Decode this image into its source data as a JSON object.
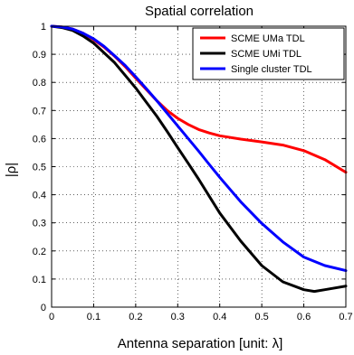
{
  "chart_data": {
    "type": "line",
    "title": "Spatial correlation",
    "xlabel": "Antenna separation [unit: λ]",
    "ylabel": "|ρ|",
    "xlim": [
      0,
      0.7
    ],
    "ylim": [
      0,
      1
    ],
    "xticks": [
      0,
      0.1,
      0.2,
      0.3,
      0.4,
      0.5,
      0.6,
      0.7
    ],
    "xtick_labels": [
      "0",
      "0.1",
      "0.2",
      "0.3",
      "0.4",
      "0.5",
      "0.6",
      "0.7"
    ],
    "yticks": [
      0,
      0.1,
      0.2,
      0.3,
      0.4,
      0.5,
      0.6,
      0.7,
      0.8,
      0.9,
      1
    ],
    "ytick_labels": [
      "0",
      "0.1",
      "0.2",
      "0.3",
      "0.4",
      "0.5",
      "0.6",
      "0.7",
      "0.8",
      "0.9",
      "1"
    ],
    "grid": true,
    "legend_position": "top-right",
    "series": [
      {
        "name": "SCME UMa TDL",
        "color": "#ff0000",
        "x": [
          0,
          0.025,
          0.05,
          0.075,
          0.1,
          0.125,
          0.15,
          0.175,
          0.2,
          0.225,
          0.25,
          0.275,
          0.3,
          0.325,
          0.35,
          0.375,
          0.4,
          0.45,
          0.5,
          0.55,
          0.6,
          0.65,
          0.7
        ],
        "y": [
          1.0,
          0.997,
          0.99,
          0.975,
          0.952,
          0.925,
          0.893,
          0.856,
          0.815,
          0.775,
          0.735,
          0.7,
          0.672,
          0.65,
          0.632,
          0.62,
          0.61,
          0.598,
          0.588,
          0.577,
          0.557,
          0.525,
          0.48
        ]
      },
      {
        "name": "SCME UMi TDL",
        "color": "#000000",
        "x": [
          0,
          0.025,
          0.05,
          0.075,
          0.1,
          0.125,
          0.15,
          0.175,
          0.2,
          0.225,
          0.25,
          0.275,
          0.3,
          0.325,
          0.35,
          0.375,
          0.4,
          0.45,
          0.5,
          0.55,
          0.6,
          0.625,
          0.65,
          0.7
        ],
        "y": [
          1.0,
          0.995,
          0.985,
          0.965,
          0.94,
          0.905,
          0.87,
          0.825,
          0.78,
          0.73,
          0.68,
          0.625,
          0.568,
          0.512,
          0.455,
          0.395,
          0.335,
          0.235,
          0.148,
          0.09,
          0.062,
          0.056,
          0.062,
          0.075
        ]
      },
      {
        "name": "Single cluster TDL",
        "color": "#0000ff",
        "x": [
          0,
          0.025,
          0.05,
          0.075,
          0.1,
          0.125,
          0.15,
          0.175,
          0.2,
          0.225,
          0.25,
          0.275,
          0.3,
          0.325,
          0.35,
          0.375,
          0.4,
          0.45,
          0.5,
          0.55,
          0.6,
          0.65,
          0.7
        ],
        "y": [
          1.0,
          0.997,
          0.99,
          0.975,
          0.955,
          0.928,
          0.895,
          0.86,
          0.82,
          0.778,
          0.735,
          0.69,
          0.645,
          0.6,
          0.555,
          0.508,
          0.462,
          0.375,
          0.298,
          0.232,
          0.178,
          0.148,
          0.13
        ]
      }
    ]
  }
}
